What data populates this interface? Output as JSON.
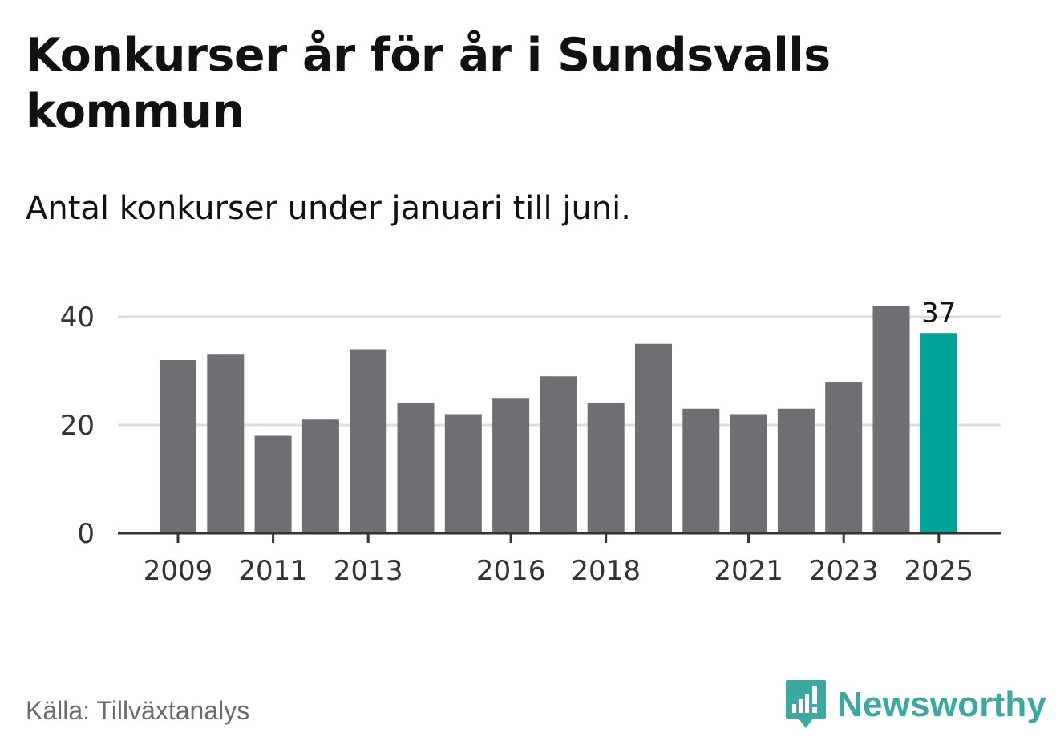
{
  "header": {
    "title": "Konkurser år för år i Sundsvalls kommun",
    "subtitle": "Antal konkurser under januari till juni."
  },
  "footer": {
    "source": "Källa: Tillväxtanalys",
    "brand": "Newsworthy"
  },
  "colors": {
    "bar": "#6e6e73",
    "highlight": "#00a39a",
    "grid": "#dddddd",
    "axis": "#333333",
    "brand": "#3aa9a2"
  },
  "chart_data": {
    "type": "bar",
    "categories": [
      "2009",
      "2010",
      "2011",
      "2012",
      "2013",
      "2014",
      "2015",
      "2016",
      "2017",
      "2018",
      "2019",
      "2020",
      "2021",
      "2022",
      "2023",
      "2024",
      "2025"
    ],
    "values": [
      32,
      33,
      18,
      21,
      34,
      24,
      22,
      25,
      29,
      24,
      35,
      23,
      22,
      23,
      28,
      42,
      37
    ],
    "tick_labels": [
      "2009",
      "2011",
      "2013",
      "2016",
      "2018",
      "2021",
      "2023",
      "2025"
    ],
    "y_ticks": [
      0,
      20,
      40
    ],
    "ylim": [
      0,
      42
    ],
    "highlight_category": "2025",
    "value_label": {
      "category": "2025",
      "text": "37"
    },
    "grid": true
  }
}
